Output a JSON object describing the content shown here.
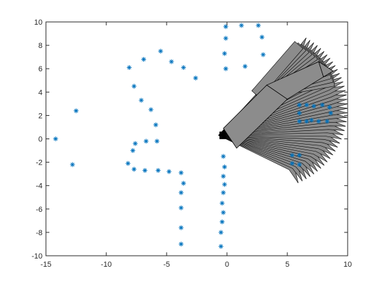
{
  "chart_data": {
    "type": "scatter",
    "title": "",
    "xlabel": "",
    "ylabel": "",
    "xlim": [
      -15,
      10
    ],
    "ylim": [
      -10,
      10
    ],
    "grid": false,
    "x_ticks": [
      "-15",
      "-10",
      "-5",
      "0",
      "5",
      "10"
    ],
    "y_ticks": [
      "-10",
      "-8",
      "-6",
      "-4",
      "-2",
      "0",
      "2",
      "4",
      "6",
      "8",
      "10"
    ],
    "marker": "asterisk",
    "marker_color": "#0072BD",
    "points": [
      [
        -14.2,
        0.0
      ],
      [
        -12.8,
        -2.2
      ],
      [
        -12.5,
        2.4
      ],
      [
        -8.1,
        6.1
      ],
      [
        -7.7,
        4.5
      ],
      [
        -7.1,
        3.3
      ],
      [
        -6.9,
        6.8
      ],
      [
        -6.3,
        2.5
      ],
      [
        -5.5,
        7.5
      ],
      [
        -4.6,
        6.6
      ],
      [
        -3.6,
        6.1
      ],
      [
        -2.6,
        5.2
      ],
      [
        -5.9,
        1.2
      ],
      [
        -5.8,
        -0.2
      ],
      [
        -6.7,
        -0.2
      ],
      [
        -7.6,
        -0.4
      ],
      [
        -7.8,
        -1.0
      ],
      [
        -8.2,
        -2.1
      ],
      [
        -7.7,
        -2.6
      ],
      [
        -6.8,
        -2.7
      ],
      [
        -5.7,
        -2.7
      ],
      [
        -4.8,
        -2.8
      ],
      [
        -3.8,
        -2.9
      ],
      [
        -3.6,
        -3.8
      ],
      [
        -3.8,
        -4.6
      ],
      [
        -3.8,
        -5.9
      ],
      [
        -3.8,
        -7.6
      ],
      [
        -3.8,
        -9.0
      ],
      [
        -0.1,
        9.6
      ],
      [
        1.2,
        9.7
      ],
      [
        2.6,
        9.7
      ],
      [
        -0.1,
        8.6
      ],
      [
        2.9,
        8.7
      ],
      [
        -0.2,
        7.3
      ],
      [
        3.0,
        7.2
      ],
      [
        -0.1,
        6.0
      ],
      [
        1.5,
        6.2
      ],
      [
        -0.3,
        -1.5
      ],
      [
        -0.2,
        -2.4
      ],
      [
        -0.3,
        -3.2
      ],
      [
        -0.2,
        -3.9
      ],
      [
        -0.3,
        -4.6
      ],
      [
        -0.4,
        -5.5
      ],
      [
        -0.3,
        -6.3
      ],
      [
        -0.4,
        -7.1
      ],
      [
        -0.5,
        -8.0
      ],
      [
        -0.5,
        -9.2
      ],
      [
        6.0,
        2.9
      ],
      [
        6.6,
        2.9
      ],
      [
        7.2,
        2.8
      ],
      [
        7.9,
        2.9
      ],
      [
        8.5,
        2.7
      ],
      [
        8.6,
        2.2
      ],
      [
        6.0,
        1.5
      ],
      [
        6.6,
        1.5
      ],
      [
        7.0,
        1.6
      ],
      [
        7.6,
        1.5
      ],
      [
        8.3,
        1.5
      ],
      [
        6.0,
        2.2
      ],
      [
        5.4,
        -1.4
      ],
      [
        6.0,
        -1.4
      ],
      [
        5.4,
        -2.1
      ],
      [
        6.0,
        -2.2
      ]
    ],
    "overlay": {
      "description_kind": "gray filled polygons (robot arm sweep)",
      "fill_color": "#8c8c8c",
      "edge_color": "#000000"
    }
  }
}
